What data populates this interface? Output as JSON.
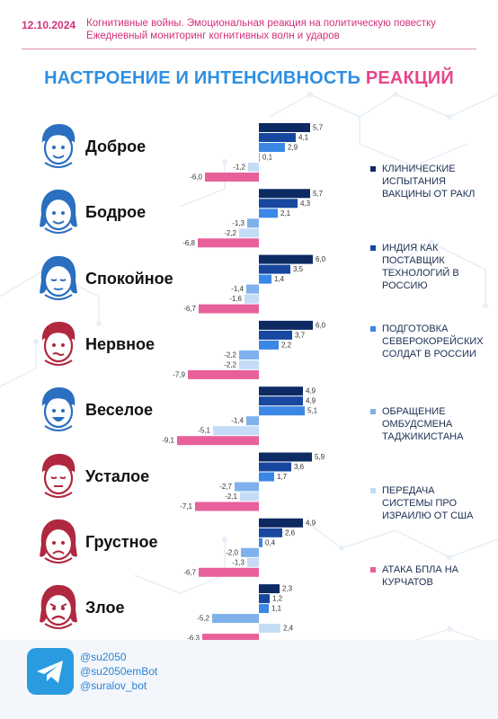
{
  "header": {
    "date": "12.10.2024",
    "line1": "Когнитивные войны. Эмоциональная реакция на политическую повестку",
    "line2": "Ежедневный мониторинг когнитивных волн и ударов"
  },
  "title_part1": "НАСТРОЕНИЕ И ИНТЕНСИВНОСТЬ",
  "title_part2": "РЕАКЦИЙ",
  "moods": [
    {
      "label": "Доброе",
      "face": "blue",
      "expression": "smile",
      "hair": "short"
    },
    {
      "label": "Бодрое",
      "face": "blue",
      "expression": "smile",
      "hair": "long"
    },
    {
      "label": "Спокойное",
      "face": "blue",
      "expression": "calm",
      "hair": "long"
    },
    {
      "label": "Нервное",
      "face": "red",
      "expression": "nervous",
      "hair": "short"
    },
    {
      "label": "Веселое",
      "face": "blue",
      "expression": "grin",
      "hair": "short"
    },
    {
      "label": "Усталое",
      "face": "red",
      "expression": "tired",
      "hair": "short"
    },
    {
      "label": "Грустное",
      "face": "red",
      "expression": "sad",
      "hair": "long"
    },
    {
      "label": "Злое",
      "face": "red",
      "expression": "angry",
      "hair": "long"
    }
  ],
  "chart_data": {
    "type": "bar",
    "orientation": "horizontal",
    "categories": [
      "Доброе",
      "Бодрое",
      "Спокойное",
      "Нервное",
      "Веселое",
      "Усталое",
      "Грустное",
      "Злое"
    ],
    "series": [
      {
        "name": "Клинические испытания вакцины от ракл",
        "color": "#0d2a63",
        "values": [
          5.7,
          5.7,
          6.0,
          6.0,
          4.9,
          5.9,
          4.9,
          2.3
        ]
      },
      {
        "name": "Индия как поставщик технологий в Россию",
        "color": "#17479e",
        "values": [
          4.1,
          4.3,
          3.5,
          3.7,
          4.9,
          3.6,
          2.6,
          1.2
        ]
      },
      {
        "name": "Подготовка северокорейских солдат в России",
        "color": "#3b87e5",
        "values": [
          2.9,
          2.1,
          1.4,
          2.2,
          5.1,
          1.7,
          0.4,
          1.1
        ]
      },
      {
        "name": "Обращение омбудсмена Таджикистана",
        "color": "#7fb1ec",
        "values": [
          0.1,
          -1.3,
          -1.4,
          -2.2,
          -1.4,
          -2.7,
          -2.0,
          -5.2
        ]
      },
      {
        "name": "Передача системы ПРО Израилю от США",
        "color": "#c4dcf6",
        "values": [
          -1.2,
          -2.2,
          -1.6,
          -2.2,
          -5.1,
          -2.1,
          -1.3,
          2.4
        ]
      },
      {
        "name": "Атака БПЛА на Курчатов",
        "color": "#e8609b",
        "values": [
          -6.0,
          -6.8,
          -6.7,
          -7.9,
          -9.1,
          -7.1,
          -6.7,
          -6.3
        ]
      }
    ],
    "data_labels": [
      [
        "5,7",
        "4,1",
        "2,9",
        "0,1",
        "-1,2",
        "-6,0"
      ],
      [
        "5,7",
        "4,3",
        "2,1",
        "-1,3",
        "-2,2",
        "-6,8"
      ],
      [
        "6,0",
        "3,5",
        "1,4",
        "-1,4",
        "-1,6",
        "-6,7"
      ],
      [
        "6,0",
        "3,7",
        "2,2",
        "-2,2",
        "-2,2",
        "-7,9"
      ],
      [
        "4,9",
        "4,9",
        "5,1",
        "-1,4",
        "-5,1",
        "-9,1"
      ],
      [
        "5,9",
        "3,6",
        "1,7",
        "-2,7",
        "-2,1",
        "-7,1"
      ],
      [
        "4,9",
        "2,6",
        "0,4",
        "-2,0",
        "-1,3",
        "-6,7"
      ],
      [
        "2,3",
        "1,2",
        "1,1",
        "-5,2",
        "2,4",
        "-6,3"
      ]
    ],
    "legend_position": "right",
    "grid": false
  },
  "legend": [
    {
      "label": "Клинические испытания вакцины от ракл",
      "color": "#0d2a63"
    },
    {
      "label": "Индия как поставщик технологий в Россию",
      "color": "#17479e"
    },
    {
      "label": "Подготовка северокорейских солдат в России",
      "color": "#3b87e5"
    },
    {
      "label": "Обращение омбудсмена Таджикистана",
      "color": "#7fb1ec"
    },
    {
      "label": "Передача системы ПРО Израилю от США",
      "color": "#c4dcf6"
    },
    {
      "label": "Атака БПЛА на Курчатов",
      "color": "#e8609b"
    }
  ],
  "footer": {
    "icon": "telegram-icon",
    "handles": [
      "@su2050",
      "@su2050emBot",
      "@suralov_bot"
    ]
  },
  "colors": {
    "accent_pink": "#d4307a",
    "accent_blue": "#2f8fe0",
    "face_blue": "#2a6fc0",
    "face_red": "#b0283f"
  }
}
